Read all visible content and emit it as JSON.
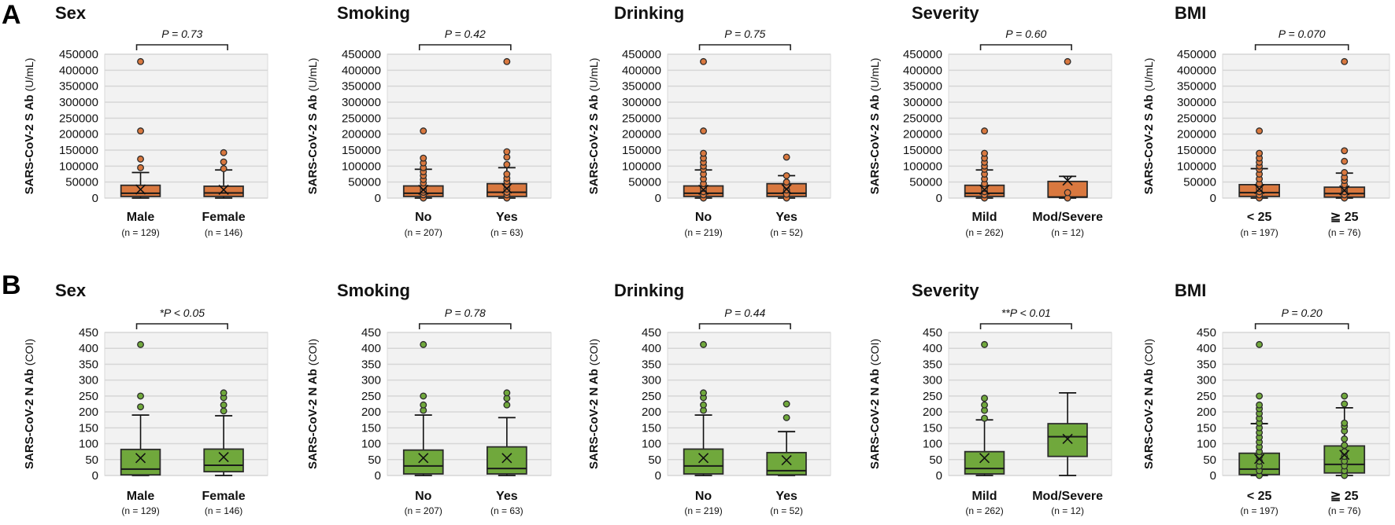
{
  "chart_data": [
    {
      "panel": "A",
      "type": "boxplot",
      "title": "Sex",
      "ylabel": "SARS-CoV-2 S Ab",
      "yunit": "(U/mL)",
      "ylim": [
        0,
        450000
      ],
      "yticks": [
        0,
        50000,
        100000,
        150000,
        200000,
        250000,
        300000,
        350000,
        400000,
        450000
      ],
      "grid": true,
      "color": "#d9783f",
      "p_value": "P = 0.73",
      "groups": [
        {
          "label": "Male",
          "n": "(n = 129)",
          "min": 0,
          "q1": 5000,
          "median": 15000,
          "q3": 40000,
          "max": 80000,
          "mean": 27000,
          "outliers": [
            95000,
            122000,
            210000,
            427000
          ]
        },
        {
          "label": "Female",
          "n": "(n = 146)",
          "min": 0,
          "q1": 5000,
          "median": 16000,
          "q3": 37000,
          "max": 88000,
          "mean": 26000,
          "outliers": [
            92000,
            113000,
            142000
          ]
        }
      ]
    },
    {
      "panel": "A",
      "type": "boxplot",
      "title": "Smoking",
      "ylabel": "SARS-CoV-2 S Ab",
      "yunit": "(U/mL)",
      "ylim": [
        0,
        450000
      ],
      "yticks": [
        0,
        50000,
        100000,
        150000,
        200000,
        250000,
        300000,
        350000,
        400000,
        450000
      ],
      "grid": true,
      "color": "#d9783f",
      "p_value": "P = 0.42",
      "groups": [
        {
          "label": "No",
          "n": "(n = 207)",
          "min": 0,
          "q1": 5000,
          "median": 15000,
          "q3": 38000,
          "max": 90000,
          "mean": 26000,
          "outliers": [
            0,
            10000,
            18000,
            25000,
            35000,
            47000,
            58000,
            70000,
            82000,
            95000,
            110000,
            125000,
            210000
          ]
        },
        {
          "label": "Yes",
          "n": "(n = 63)",
          "min": 0,
          "q1": 5000,
          "median": 18000,
          "q3": 45000,
          "max": 95000,
          "mean": 30000,
          "outliers": [
            0,
            10000,
            18000,
            28000,
            40000,
            52000,
            62000,
            75000,
            105000,
            128000,
            145000,
            427000
          ]
        }
      ]
    },
    {
      "panel": "A",
      "type": "boxplot",
      "title": "Drinking",
      "ylabel": "SARS-CoV-2 S Ab",
      "yunit": "(U/mL)",
      "ylim": [
        0,
        450000
      ],
      "yticks": [
        0,
        50000,
        100000,
        150000,
        200000,
        250000,
        300000,
        350000,
        400000,
        450000
      ],
      "grid": true,
      "color": "#d9783f",
      "p_value": "P = 0.75",
      "groups": [
        {
          "label": "No",
          "n": "(n = 219)",
          "min": 0,
          "q1": 5000,
          "median": 15000,
          "q3": 38000,
          "max": 88000,
          "mean": 26000,
          "outliers": [
            0,
            10000,
            20000,
            30000,
            45000,
            60000,
            75000,
            90000,
            100000,
            112000,
            125000,
            140000,
            210000,
            427000
          ]
        },
        {
          "label": "Yes",
          "n": "(n = 52)",
          "min": 0,
          "q1": 5000,
          "median": 15000,
          "q3": 45000,
          "max": 70000,
          "mean": 28000,
          "outliers": [
            0,
            12000,
            25000,
            38000,
            50000,
            70000,
            128000
          ]
        }
      ]
    },
    {
      "panel": "A",
      "type": "boxplot",
      "title": "Severity",
      "ylabel": "SARS-CoV-2 S Ab",
      "yunit": "(U/mL)",
      "ylim": [
        0,
        450000
      ],
      "yticks": [
        0,
        50000,
        100000,
        150000,
        200000,
        250000,
        300000,
        350000,
        400000,
        450000
      ],
      "grid": true,
      "color": "#d9783f",
      "p_value": "P = 0.60",
      "groups": [
        {
          "label": "Mild",
          "n": "(n = 262)",
          "min": 0,
          "q1": 5000,
          "median": 15000,
          "q3": 40000,
          "max": 88000,
          "mean": 26000,
          "outliers": [
            0,
            10000,
            20000,
            30000,
            45000,
            60000,
            75000,
            90000,
            100000,
            112000,
            125000,
            140000,
            210000
          ]
        },
        {
          "label": "Mod/Severe",
          "n": "(n = 12)",
          "min": 0,
          "q1": 3000,
          "median": 3000,
          "q3": 52000,
          "max": 68000,
          "mean": 55000,
          "outliers": [
            0,
            17000,
            427000
          ]
        }
      ]
    },
    {
      "panel": "A",
      "type": "boxplot",
      "title": "BMI",
      "ylabel": "SARS-CoV-2 S Ab",
      "yunit": "(U/mL)",
      "ylim": [
        0,
        450000
      ],
      "yticks": [
        0,
        50000,
        100000,
        150000,
        200000,
        250000,
        300000,
        350000,
        400000,
        450000
      ],
      "grid": true,
      "color": "#d9783f",
      "p_value": "P = 0.070",
      "groups": [
        {
          "label": "< 25",
          "n": "(n = 197)",
          "min": 0,
          "q1": 5000,
          "median": 17000,
          "q3": 42000,
          "max": 92000,
          "mean": 28000,
          "outliers": [
            0,
            10000,
            20000,
            30000,
            45000,
            60000,
            75000,
            90000,
            100000,
            112000,
            125000,
            140000,
            210000
          ]
        },
        {
          "label": "≧ 25",
          "n": "(n = 76)",
          "min": 0,
          "q1": 3000,
          "median": 14000,
          "q3": 34000,
          "max": 78000,
          "mean": 24000,
          "outliers": [
            0,
            10000,
            20000,
            30000,
            42000,
            55000,
            65000,
            80000,
            115000,
            148000,
            427000
          ]
        }
      ]
    },
    {
      "panel": "B",
      "type": "boxplot",
      "title": "Sex",
      "ylabel": "SARS-CoV-2 N Ab",
      "yunit": "(COI)",
      "ylim": [
        0,
        450
      ],
      "yticks": [
        0,
        50,
        100,
        150,
        200,
        250,
        300,
        350,
        400,
        450
      ],
      "grid": true,
      "color": "#70a83c",
      "p_value": "*P < 0.05",
      "groups": [
        {
          "label": "Male",
          "n": "(n = 129)",
          "min": 0,
          "q1": 2,
          "median": 20,
          "q3": 82,
          "max": 190,
          "mean": 55,
          "outliers": [
            216,
            250,
            412
          ]
        },
        {
          "label": "Female",
          "n": "(n = 146)",
          "min": 0,
          "q1": 12,
          "median": 32,
          "q3": 83,
          "max": 188,
          "mean": 58,
          "outliers": [
            203,
            222,
            245,
            260
          ]
        }
      ]
    },
    {
      "panel": "B",
      "type": "boxplot",
      "title": "Smoking",
      "ylabel": "SARS-CoV-2 N Ab",
      "yunit": "(COI)",
      "ylim": [
        0,
        450
      ],
      "yticks": [
        0,
        50,
        100,
        150,
        200,
        250,
        300,
        350,
        400,
        450
      ],
      "grid": true,
      "color": "#70a83c",
      "p_value": "P = 0.78",
      "groups": [
        {
          "label": "No",
          "n": "(n = 207)",
          "min": 0,
          "q1": 5,
          "median": 30,
          "q3": 80,
          "max": 190,
          "mean": 55,
          "outliers": [
            205,
            222,
            250,
            412
          ]
        },
        {
          "label": "Yes",
          "n": "(n = 63)",
          "min": 0,
          "q1": 5,
          "median": 22,
          "q3": 90,
          "max": 182,
          "mean": 55,
          "outliers": [
            222,
            243,
            260
          ]
        }
      ]
    },
    {
      "panel": "B",
      "type": "boxplot",
      "title": "Drinking",
      "ylabel": "SARS-CoV-2 N Ab",
      "yunit": "(COI)",
      "ylim": [
        0,
        450
      ],
      "yticks": [
        0,
        50,
        100,
        150,
        200,
        250,
        300,
        350,
        400,
        450
      ],
      "grid": true,
      "color": "#70a83c",
      "p_value": "P = 0.44",
      "groups": [
        {
          "label": "No",
          "n": "(n = 219)",
          "min": 0,
          "q1": 5,
          "median": 30,
          "q3": 83,
          "max": 190,
          "mean": 55,
          "outliers": [
            205,
            222,
            245,
            260,
            412
          ]
        },
        {
          "label": "Yes",
          "n": "(n = 52)",
          "min": 0,
          "q1": 2,
          "median": 15,
          "q3": 72,
          "max": 138,
          "mean": 48,
          "outliers": [
            182,
            225
          ]
        }
      ]
    },
    {
      "panel": "B",
      "type": "boxplot",
      "title": "Severity",
      "ylabel": "SARS-CoV-2 N Ab",
      "yunit": "(COI)",
      "ylim": [
        0,
        450
      ],
      "yticks": [
        0,
        50,
        100,
        150,
        200,
        250,
        300,
        350,
        400,
        450
      ],
      "grid": true,
      "color": "#70a83c",
      "p_value": "**P < 0.01",
      "groups": [
        {
          "label": "Mild",
          "n": "(n = 262)",
          "min": 0,
          "q1": 5,
          "median": 22,
          "q3": 75,
          "max": 175,
          "mean": 55,
          "outliers": [
            180,
            205,
            222,
            243,
            412
          ]
        },
        {
          "label": "Mod/Severe",
          "n": "(n = 12)",
          "min": 0,
          "q1": 60,
          "median": 122,
          "q3": 163,
          "max": 260,
          "mean": 115,
          "outliers": []
        }
      ]
    },
    {
      "panel": "B",
      "type": "boxplot",
      "title": "BMI",
      "ylabel": "SARS-CoV-2 N Ab",
      "yunit": "(COI)",
      "ylim": [
        0,
        450
      ],
      "yticks": [
        0,
        50,
        100,
        150,
        200,
        250,
        300,
        350,
        400,
        450
      ],
      "grid": true,
      "color": "#70a83c",
      "p_value": "P = 0.20",
      "groups": [
        {
          "label": "< 25",
          "n": "(n = 197)",
          "min": 0,
          "q1": 3,
          "median": 20,
          "q3": 70,
          "max": 163,
          "mean": 52,
          "outliers": [
            0,
            15,
            30,
            45,
            60,
            75,
            90,
            105,
            120,
            135,
            150,
            165,
            180,
            195,
            210,
            222,
            250,
            412
          ]
        },
        {
          "label": "≧ 25",
          "n": "(n = 76)",
          "min": 0,
          "q1": 8,
          "median": 35,
          "q3": 93,
          "max": 213,
          "mean": 65,
          "outliers": [
            0,
            15,
            30,
            45,
            60,
            75,
            95,
            115,
            140,
            155,
            165,
            225,
            250
          ]
        }
      ]
    }
  ],
  "panel_letters": [
    "A",
    "B"
  ]
}
